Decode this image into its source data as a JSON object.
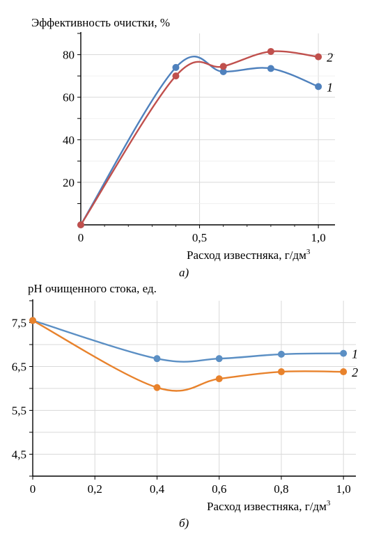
{
  "chart_data": [
    {
      "type": "line",
      "ylabel": "Эффективность очистки, %",
      "xlabel": "Расход известняка, г/дм",
      "xlabel_sup": "3",
      "caption": "а)",
      "xlim": [
        0,
        1.07
      ],
      "ylim": [
        0,
        90
      ],
      "xticks": [
        0,
        0.5,
        1.0
      ],
      "xtick_labels": [
        "0",
        "0,5",
        "1,0"
      ],
      "yticks": [
        20,
        40,
        60,
        80
      ],
      "ytick_labels": [
        "20",
        "40",
        "60",
        "80"
      ],
      "grid": true,
      "series": [
        {
          "name": "1",
          "color": "#4f81bd",
          "x": [
            0,
            0.4,
            0.6,
            0.8,
            1.0
          ],
          "y": [
            0,
            74,
            72,
            73.5,
            65
          ]
        },
        {
          "name": "2",
          "color": "#c0504d",
          "x": [
            0,
            0.4,
            0.6,
            0.8,
            1.0
          ],
          "y": [
            0,
            70,
            74.5,
            81.5,
            79
          ]
        }
      ]
    },
    {
      "type": "line",
      "ylabel": "pH очищенного стока, ед.",
      "xlabel": "Расход известняка, г/дм",
      "xlabel_sup": "3",
      "caption": "б)",
      "xlim": [
        0,
        1.04
      ],
      "ylim": [
        4,
        8
      ],
      "xticks": [
        0,
        0.2,
        0.4,
        0.6,
        0.8,
        1.0
      ],
      "xtick_labels": [
        "0",
        "0,2",
        "0,4",
        "0,6",
        "0,8",
        "1,0"
      ],
      "yticks": [
        4.5,
        5.5,
        6.5,
        7.5
      ],
      "ytick_labels": [
        "4,5",
        "5,5",
        "6,5",
        "7,5"
      ],
      "grid": true,
      "series": [
        {
          "name": "1",
          "color": "#5b8fc4",
          "x": [
            0,
            0.4,
            0.6,
            0.8,
            1.0
          ],
          "y": [
            7.55,
            6.68,
            6.68,
            6.78,
            6.8
          ]
        },
        {
          "name": "2",
          "color": "#e8822c",
          "x": [
            0,
            0.4,
            0.6,
            0.8,
            1.0
          ],
          "y": [
            7.55,
            6.02,
            6.22,
            6.38,
            6.38
          ]
        }
      ]
    }
  ]
}
